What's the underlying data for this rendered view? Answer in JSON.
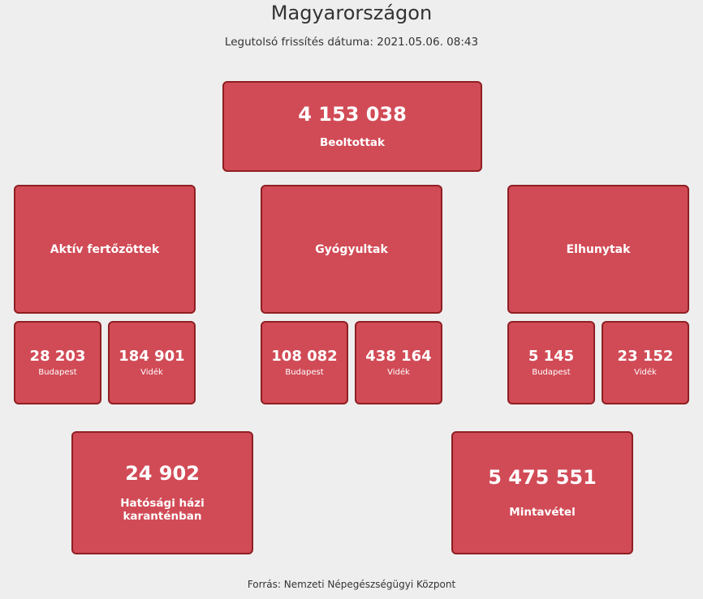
{
  "header": {
    "title": "Magyarországon",
    "updated": "Legutolsó frissítés dátuma: 2021.05.06. 08:43"
  },
  "vaccinated": {
    "value": "4 153 038",
    "label": "Beoltottak"
  },
  "categories": [
    {
      "label": "Aktív fertőzöttek",
      "budapest": {
        "value": "28 203",
        "label": "Budapest"
      },
      "videk": {
        "value": "184 901",
        "label": "Vidék"
      }
    },
    {
      "label": "Gyógyultak",
      "budapest": {
        "value": "108 082",
        "label": "Budapest"
      },
      "videk": {
        "value": "438 164",
        "label": "Vidék"
      }
    },
    {
      "label": "Elhunytak",
      "budapest": {
        "value": "5 145",
        "label": "Budapest"
      },
      "videk": {
        "value": "23 152",
        "label": "Vidék"
      }
    }
  ],
  "quarantine": {
    "value": "24 902",
    "label": "Hatósági házi karanténban"
  },
  "samples": {
    "value": "5 475 551",
    "label": "Mintavétel"
  },
  "footer": {
    "source": "Forrás: Nemzeti Népegészségügyi Központ"
  },
  "colors": {
    "card_bg": "#d14b56",
    "card_border": "#8e1f23",
    "page_bg": "#eeeeee"
  }
}
